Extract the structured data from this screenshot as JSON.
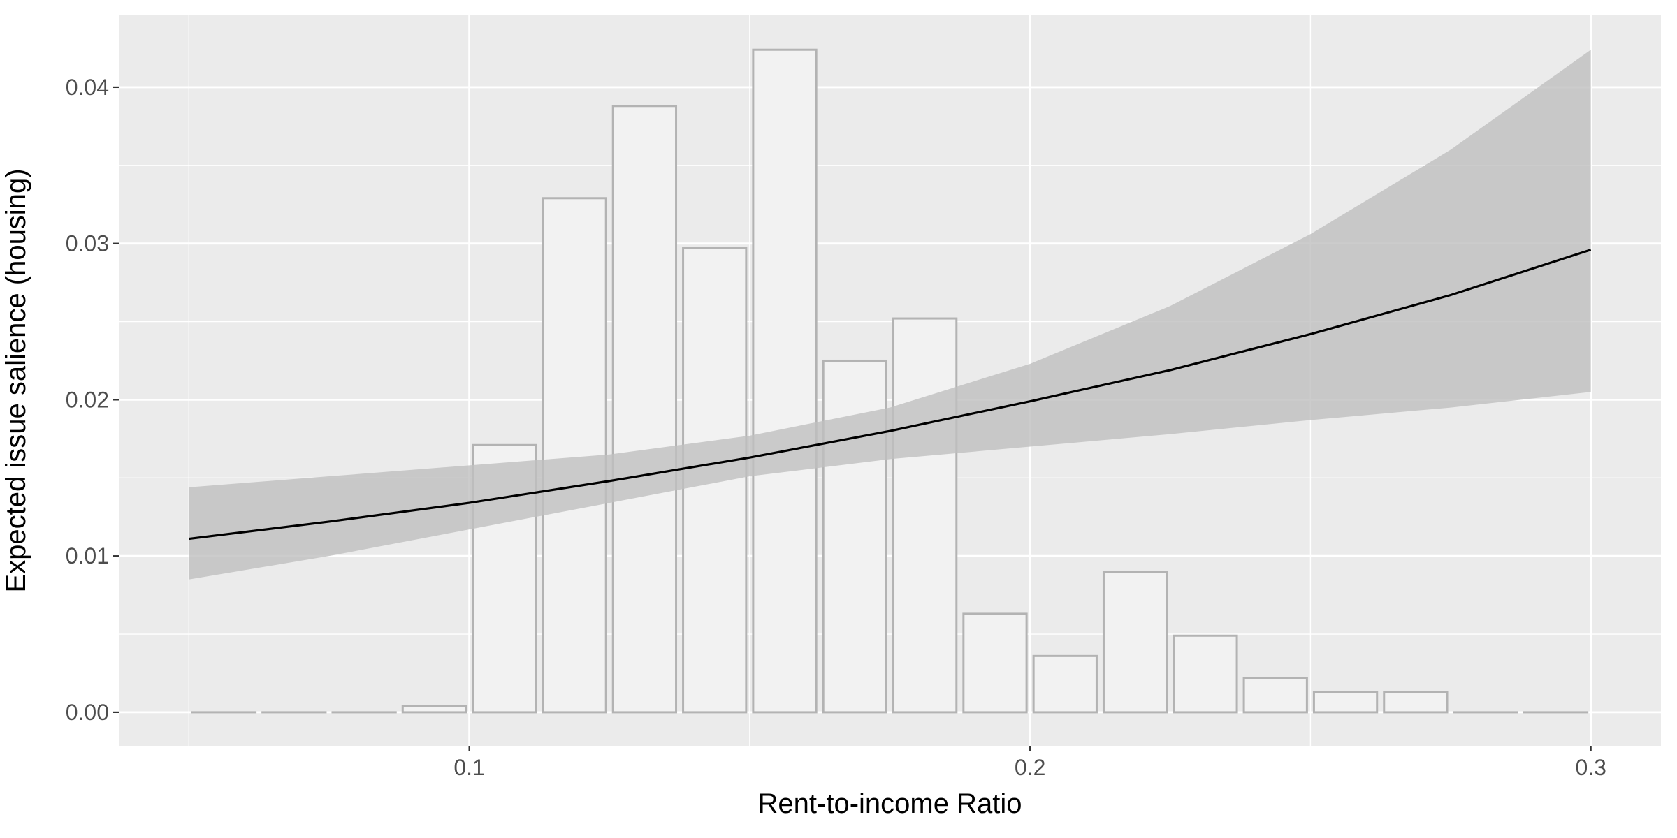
{
  "chart_data": {
    "type": "bar",
    "xlabel": "Rent-to-income Ratio",
    "ylabel": "Expected issue salience (housing)",
    "xlim": [
      0.0375,
      0.3125
    ],
    "ylim": [
      -0.00215,
      0.0446
    ],
    "x_ticks": [
      0.1,
      0.2,
      0.3
    ],
    "x_tick_labels": [
      "0.1",
      "0.2",
      "0.3"
    ],
    "y_ticks": [
      0,
      0.01,
      0.02,
      0.03,
      0.04
    ],
    "y_tick_labels": [
      "0.00",
      "0.01",
      "0.02",
      "0.03",
      "0.04"
    ],
    "grid": true,
    "histogram": {
      "bin_width": 0.0125,
      "bins": [
        {
          "x": 0.05625,
          "value": 0.0
        },
        {
          "x": 0.06875,
          "value": 0.0
        },
        {
          "x": 0.08125,
          "value": 0.0
        },
        {
          "x": 0.09375,
          "value": 0.0004
        },
        {
          "x": 0.10625,
          "value": 0.0171
        },
        {
          "x": 0.11875,
          "value": 0.0329
        },
        {
          "x": 0.13125,
          "value": 0.0388
        },
        {
          "x": 0.14375,
          "value": 0.0297
        },
        {
          "x": 0.15625,
          "value": 0.0424
        },
        {
          "x": 0.16875,
          "value": 0.0225
        },
        {
          "x": 0.18125,
          "value": 0.0252
        },
        {
          "x": 0.19375,
          "value": 0.0063
        },
        {
          "x": 0.20625,
          "value": 0.0036
        },
        {
          "x": 0.21875,
          "value": 0.009
        },
        {
          "x": 0.23125,
          "value": 0.0049
        },
        {
          "x": 0.24375,
          "value": 0.0022
        },
        {
          "x": 0.25625,
          "value": 0.0013
        },
        {
          "x": 0.26875,
          "value": 0.0013
        },
        {
          "x": 0.28125,
          "value": 0.0
        },
        {
          "x": 0.29375,
          "value": 0.0
        }
      ]
    },
    "fit_line": {
      "x": [
        0.05,
        0.075,
        0.1,
        0.125,
        0.15,
        0.175,
        0.2,
        0.225,
        0.25,
        0.275,
        0.3
      ],
      "y": [
        0.0111,
        0.0122,
        0.0134,
        0.0148,
        0.0163,
        0.018,
        0.0199,
        0.0219,
        0.0242,
        0.0267,
        0.0296
      ],
      "lower": [
        0.0085,
        0.01,
        0.0117,
        0.0134,
        0.0151,
        0.0162,
        0.017,
        0.0178,
        0.0187,
        0.0195,
        0.0205
      ],
      "upper": [
        0.0144,
        0.0151,
        0.0158,
        0.0165,
        0.0177,
        0.0195,
        0.0223,
        0.026,
        0.0306,
        0.036,
        0.0424
      ]
    },
    "colors": {
      "panel": "#ebebeb",
      "grid": "#ffffff",
      "bar_fill": "#f2f2f2",
      "bar_stroke": "#b3b3b3",
      "ribbon": "#bfbfbf",
      "line": "#000000"
    }
  }
}
